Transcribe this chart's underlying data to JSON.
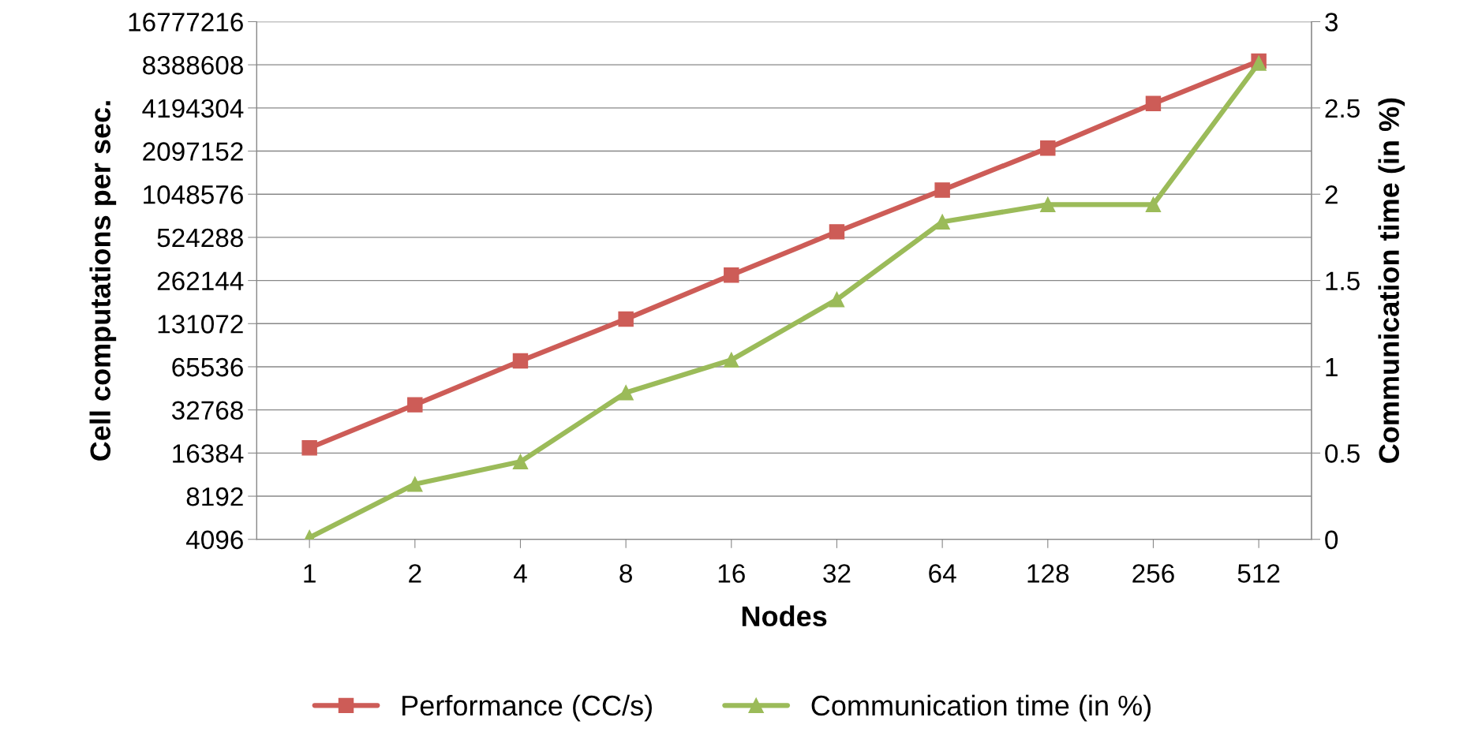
{
  "chart_data": {
    "type": "line",
    "xlabel": "Nodes",
    "ylabel": "Cell computations per sec.",
    "y2label": "Communication time (in %)",
    "categories": [
      "1",
      "2",
      "4",
      "8",
      "16",
      "32",
      "64",
      "128",
      "256",
      "512"
    ],
    "series": [
      {
        "name": "Performance (CC/s)",
        "color": "#cd5c57",
        "marker": "square",
        "values": [
          17800,
          35600,
          72000,
          141000,
          286000,
          573000,
          1120000,
          2200000,
          4500000,
          8900000
        ]
      },
      {
        "name": "Communication time (in %)",
        "color": "#9bbb59",
        "marker": "triangle",
        "axis": "y2",
        "values": [
          0.01,
          0.32,
          0.45,
          0.85,
          1.04,
          1.39,
          1.84,
          1.94,
          1.94,
          2.76
        ]
      }
    ],
    "log": "y",
    "ylim": [
      4096,
      16777216
    ],
    "yticks": [
      4096,
      8192,
      16384,
      32768,
      65536,
      131072,
      262144,
      524288,
      1048576,
      2097152,
      4194304,
      8388608,
      16777216
    ],
    "y2lim": [
      0,
      3
    ],
    "y2ticks": [
      0,
      0.5,
      1,
      1.5,
      2,
      2.5,
      3
    ],
    "grid": "y",
    "legend": "bottom",
    "line_style": "solid"
  }
}
